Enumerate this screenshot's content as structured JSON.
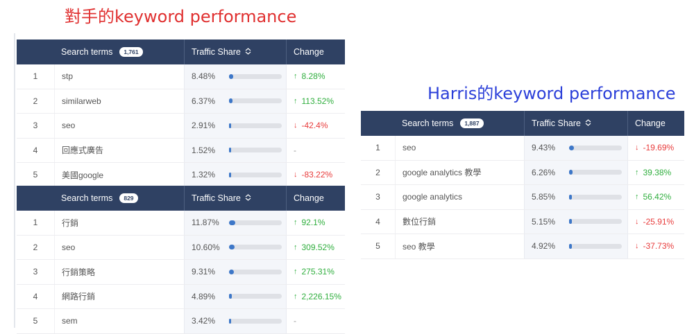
{
  "headings": {
    "competitor": "對手的keyword performance",
    "harris": "Harris的keyword performance"
  },
  "colors": {
    "competitor_heading": "#e03030",
    "harris_heading": "#2b3fd9",
    "header_bg": "#2f4163",
    "bar_fill": "#3d77c8",
    "up": "#2fae3d",
    "down": "#e83b3b"
  },
  "columns": {
    "search_terms": "Search terms",
    "traffic_share": "Traffic Share",
    "change": "Change",
    "sort_icon": "sort-up-down-icon"
  },
  "tables": [
    {
      "count": "1,761",
      "rows": [
        {
          "num": "1",
          "term": "stp",
          "share": "8.48%",
          "share_frac": 0.0848,
          "dir": "up",
          "change": "8.28%"
        },
        {
          "num": "2",
          "term": "similarweb",
          "share": "6.37%",
          "share_frac": 0.0637,
          "dir": "up",
          "change": "113.52%"
        },
        {
          "num": "3",
          "term": "seo",
          "share": "2.91%",
          "share_frac": 0.0291,
          "dir": "down",
          "change": "-42.4%"
        },
        {
          "num": "4",
          "term": "回應式廣告",
          "share": "1.52%",
          "share_frac": 0.0152,
          "dir": "none",
          "change": "-"
        },
        {
          "num": "5",
          "term": "美國google",
          "share": "1.32%",
          "share_frac": 0.0132,
          "dir": "down",
          "change": "-83.22%"
        }
      ]
    },
    {
      "count": "829",
      "rows": [
        {
          "num": "1",
          "term": "行銷",
          "share": "11.87%",
          "share_frac": 0.1187,
          "dir": "up",
          "change": "92.1%"
        },
        {
          "num": "2",
          "term": "seo",
          "share": "10.60%",
          "share_frac": 0.106,
          "dir": "up",
          "change": "309.52%"
        },
        {
          "num": "3",
          "term": "行銷策略",
          "share": "9.31%",
          "share_frac": 0.0931,
          "dir": "up",
          "change": "275.31%"
        },
        {
          "num": "4",
          "term": "網路行銷",
          "share": "4.89%",
          "share_frac": 0.0489,
          "dir": "up",
          "change": "2,226.15%"
        },
        {
          "num": "5",
          "term": "sem",
          "share": "3.42%",
          "share_frac": 0.0342,
          "dir": "none",
          "change": "-"
        }
      ]
    },
    {
      "count": "1,887",
      "rows": [
        {
          "num": "1",
          "term": "seo",
          "share": "9.43%",
          "share_frac": 0.0943,
          "dir": "down",
          "change": "-19.69%"
        },
        {
          "num": "2",
          "term": "google analytics 教學",
          "share": "6.26%",
          "share_frac": 0.0626,
          "dir": "up",
          "change": "39.38%"
        },
        {
          "num": "3",
          "term": "google analytics",
          "share": "5.85%",
          "share_frac": 0.0585,
          "dir": "up",
          "change": "56.42%"
        },
        {
          "num": "4",
          "term": "數位行銷",
          "share": "5.15%",
          "share_frac": 0.0515,
          "dir": "down",
          "change": "-25.91%"
        },
        {
          "num": "5",
          "term": "seo 教學",
          "share": "4.92%",
          "share_frac": 0.0492,
          "dir": "down",
          "change": "-37.73%"
        }
      ]
    }
  ]
}
